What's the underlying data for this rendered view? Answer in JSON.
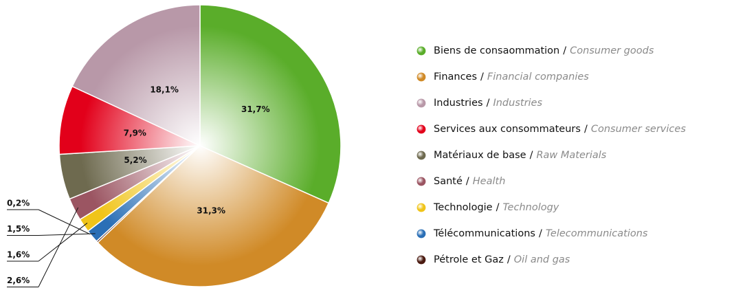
{
  "chart_data": {
    "type": "pie",
    "separator": "/",
    "series": [
      {
        "name": "Biens de consaommation",
        "name_en": "Consumer goods",
        "color": "#5aad2a",
        "value": 31.7,
        "value_label": "31,7%"
      },
      {
        "name": "Finances",
        "name_en": "Financial companies",
        "color": "#d08a27",
        "value": 31.3,
        "value_label": "31,3%"
      },
      {
        "name": "Industries",
        "name_en": "Industries",
        "color": "#b898a8",
        "value": 18.1,
        "value_label": "18,1%"
      },
      {
        "name": "Services aux consommateurs",
        "name_en": "Consumer services",
        "color": "#e2001a",
        "value": 7.9,
        "value_label": "7,9%"
      },
      {
        "name": "Matériaux de base",
        "name_en": "Raw Materials",
        "color": "#6e6a4f",
        "value": 5.2,
        "value_label": "5,2%"
      },
      {
        "name": "Santé",
        "name_en": "Health",
        "color": "#9b5562",
        "value": 2.6,
        "value_label": "2,6%"
      },
      {
        "name": "Technologie",
        "name_en": "Technology",
        "color": "#f0c419",
        "value": 1.6,
        "value_label": "1,6%"
      },
      {
        "name": "Télécommunications",
        "name_en": "Telecommunications",
        "color": "#2a6fb6",
        "value": 1.5,
        "value_label": "1,5%"
      },
      {
        "name": "Pétrole et Gaz",
        "name_en": "Oil and gas",
        "color": "#4a1a10",
        "value": 0.2,
        "value_label": "0,2%"
      }
    ]
  }
}
